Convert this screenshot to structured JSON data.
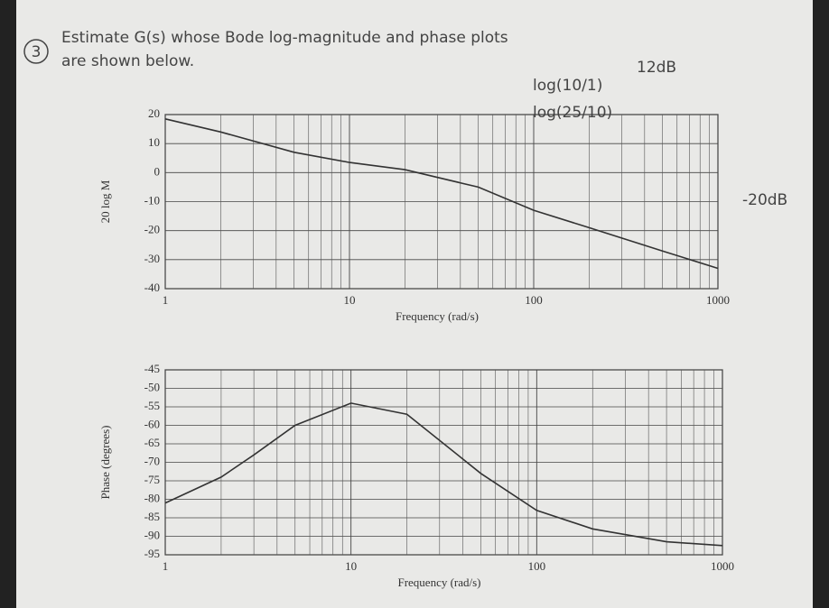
{
  "header": {
    "number": "3",
    "line1": "Estimate G(s) whose Bode log-magnitude and phase plots",
    "line2": "are shown below.",
    "notes": [
      "log(10/1)",
      "12dB",
      "log(25/10)",
      "-20dB"
    ]
  },
  "chart_data": [
    {
      "type": "line",
      "ylabel": "20 log M",
      "xlabel": "Frequency (rad/s)",
      "log_x": true,
      "grid": true,
      "color": "#333",
      "x": [
        1,
        2,
        5,
        10,
        20,
        50,
        100,
        200,
        500,
        1000
      ],
      "values": [
        18.5,
        14,
        7,
        3.5,
        1,
        -5,
        -13,
        -19,
        -27,
        -33
      ],
      "xlim": [
        1,
        1000
      ],
      "xticks": [
        1,
        10,
        100,
        1000
      ],
      "ylim": [
        -40,
        20
      ],
      "yticks": [
        -40,
        -30,
        -20,
        -10,
        0,
        10,
        20
      ]
    },
    {
      "type": "line",
      "ylabel": "Phase (degrees)",
      "xlabel": "Frequency (rad/s)",
      "log_x": true,
      "grid": true,
      "color": "#333",
      "x": [
        1,
        2,
        3,
        5,
        10,
        20,
        50,
        100,
        200,
        500,
        1000
      ],
      "values": [
        -81,
        -74,
        -68,
        -60,
        -54,
        -57,
        -73,
        -83,
        -88,
        -91.5,
        -92.5
      ],
      "xlim": [
        1,
        1000
      ],
      "xticks": [
        1,
        10,
        100,
        1000
      ],
      "ylim": [
        -95,
        -45
      ],
      "yticks": [
        -95,
        -90,
        -85,
        -80,
        -75,
        -70,
        -65,
        -60,
        -55,
        -50,
        -45
      ]
    }
  ]
}
